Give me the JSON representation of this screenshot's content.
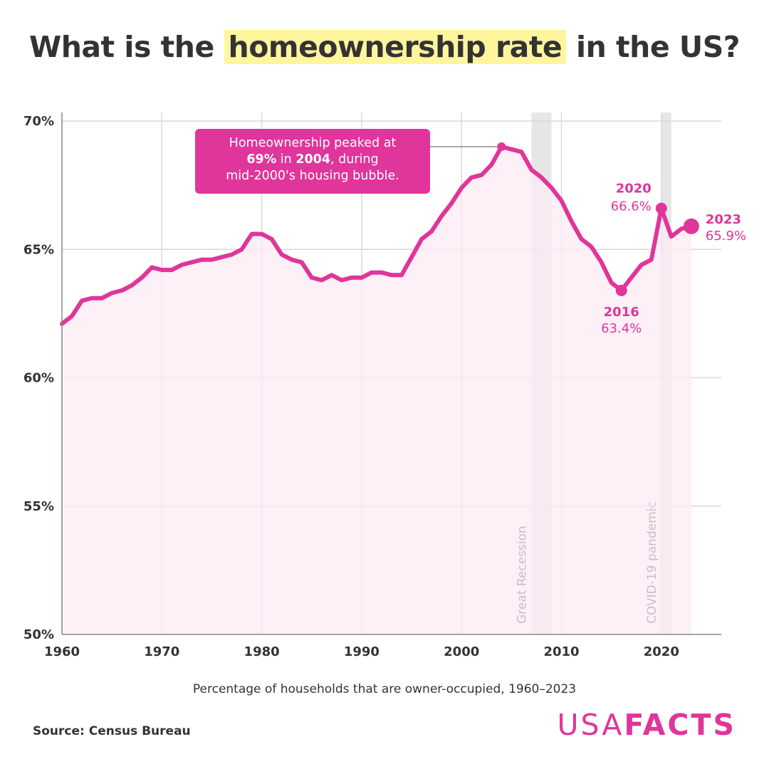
{
  "title": {
    "before": "What is the ",
    "highlight": "homeownership rate",
    "after": " in the US?"
  },
  "subtitle": "Percentage of households that are owner-occupied, 1960–2023",
  "source": "Source: Census Bureau",
  "logo": {
    "light": "USA",
    "bold": "FACTS"
  },
  "callout": {
    "line1": "Homeownership peaked at",
    "value": "69%",
    "in": " in ",
    "year": "2004",
    "rest": ", during",
    "line3": "mid-2000's housing bubble."
  },
  "colors": {
    "line": "#e0359a",
    "fill": "#fcebf4",
    "grid": "#d9d9d9",
    "recession": "#e6e6e6",
    "highlight": "#fff59d",
    "text": "#333333"
  },
  "chart_data": {
    "type": "area",
    "title": "What is the homeownership rate in the US?",
    "xlabel": "",
    "ylabel": "",
    "xlim": [
      1960,
      2026
    ],
    "ylim": [
      50,
      70
    ],
    "x_ticks": [
      1960,
      1970,
      1980,
      1990,
      2000,
      2010,
      2020
    ],
    "y_ticks": [
      {
        "value": 50,
        "label": "50%"
      },
      {
        "value": 55,
        "label": "55%"
      },
      {
        "value": 60,
        "label": "60%"
      },
      {
        "value": 65,
        "label": "65%"
      },
      {
        "value": 70,
        "label": "70%"
      }
    ],
    "grid": true,
    "x": [
      1960,
      1961,
      1962,
      1963,
      1964,
      1965,
      1966,
      1967,
      1968,
      1969,
      1970,
      1971,
      1972,
      1973,
      1974,
      1975,
      1976,
      1977,
      1978,
      1979,
      1980,
      1981,
      1982,
      1983,
      1984,
      1985,
      1986,
      1987,
      1988,
      1989,
      1990,
      1991,
      1992,
      1993,
      1994,
      1995,
      1996,
      1997,
      1998,
      1999,
      2000,
      2001,
      2002,
      2003,
      2004,
      2005,
      2006,
      2007,
      2008,
      2009,
      2010,
      2011,
      2012,
      2013,
      2014,
      2015,
      2016,
      2017,
      2018,
      2019,
      2020,
      2021,
      2022,
      2023
    ],
    "y": [
      62.1,
      62.4,
      63.0,
      63.1,
      63.1,
      63.3,
      63.4,
      63.6,
      63.9,
      64.3,
      64.2,
      64.2,
      64.4,
      64.5,
      64.6,
      64.6,
      64.7,
      64.8,
      65.0,
      65.6,
      65.6,
      65.4,
      64.8,
      64.6,
      64.5,
      63.9,
      63.8,
      64.0,
      63.8,
      63.9,
      63.9,
      64.1,
      64.1,
      64.0,
      64.0,
      64.7,
      65.4,
      65.7,
      66.3,
      66.8,
      67.4,
      67.8,
      67.9,
      68.3,
      69.0,
      68.9,
      68.8,
      68.1,
      67.8,
      67.4,
      66.9,
      66.1,
      65.4,
      65.1,
      64.5,
      63.7,
      63.4,
      63.9,
      64.4,
      64.6,
      66.6,
      65.5,
      65.8,
      65.9
    ],
    "shaded_periods": [
      {
        "label": "Great Recession",
        "start": 2007,
        "end": 2009
      },
      {
        "label": "COVID-19 pandemic",
        "start": 2020,
        "end": 2021
      }
    ],
    "annotations": [
      {
        "year": "2020",
        "value": "66.6%",
        "x": 2020,
        "y": 66.6
      },
      {
        "year": "2016",
        "value": "63.4%",
        "x": 2016,
        "y": 63.4
      },
      {
        "year": "2023",
        "value": "65.9%",
        "x": 2023,
        "y": 65.9
      }
    ],
    "peak": {
      "x": 2004,
      "y": 69.0
    }
  }
}
